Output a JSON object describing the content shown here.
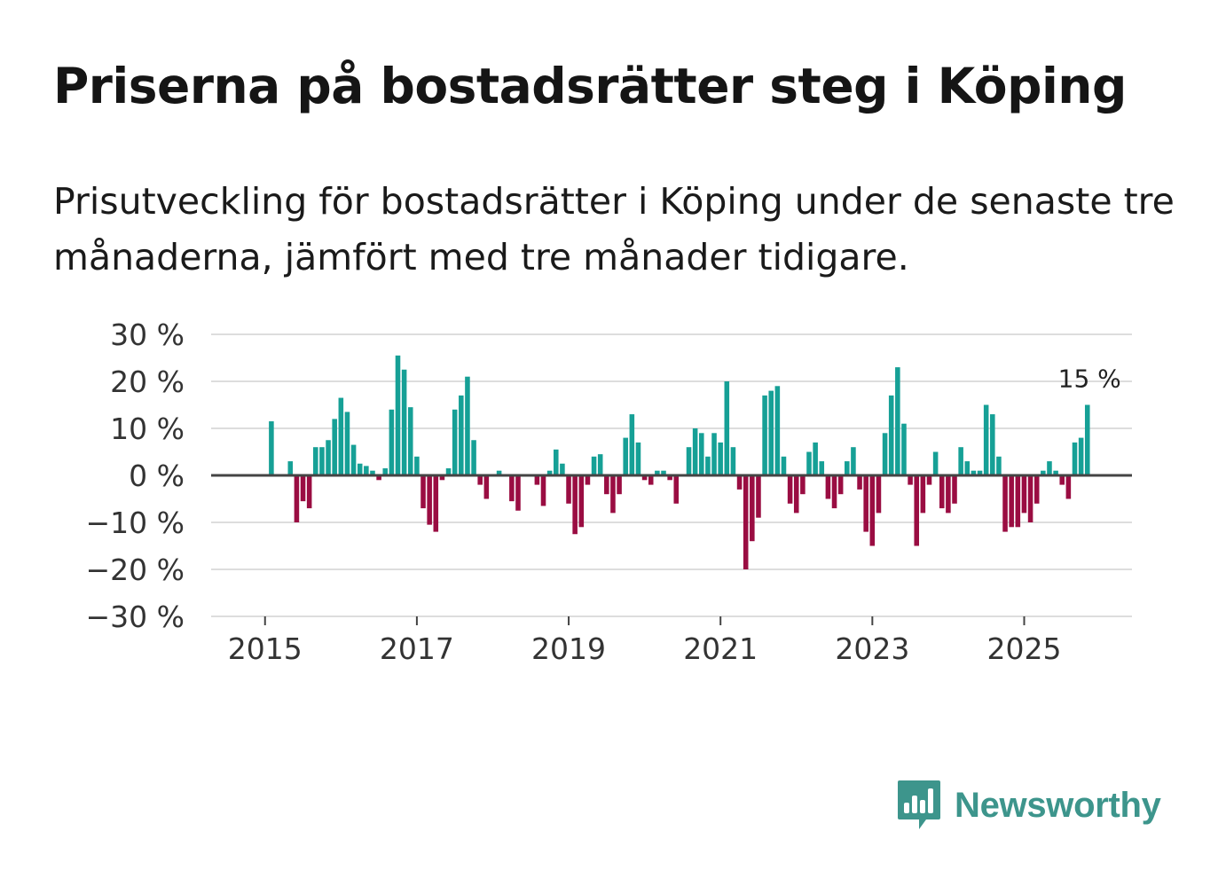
{
  "title": "Priserna på bostadsrätter steg i Köping",
  "subtitle": "Prisutveckling för bostadsrätter i Köping under de senaste tre månaderna, jämfört med tre månader tidigare.",
  "brand": {
    "name": "Newsworthy",
    "color": "#3d958c",
    "icon": "newsworthy-logo-icon"
  },
  "colors": {
    "positive": "#16a096",
    "negative": "#9a0d42",
    "grid": "#dddddd",
    "zero": "#444444"
  },
  "chart_data": {
    "type": "bar",
    "title": "Priserna på bostadsrätter steg i Köping",
    "xlabel": "",
    "ylabel": "",
    "ylim": [
      -30,
      30
    ],
    "y_ticks": [
      30,
      20,
      10,
      0,
      -10,
      -20,
      -30
    ],
    "y_tick_labels": [
      "30 %",
      "20 %",
      "10 %",
      "0 %",
      "−10 %",
      "−20 %",
      "−30 %"
    ],
    "x_ticks": [
      2015,
      2017,
      2019,
      2021,
      2023,
      2025
    ],
    "x_tick_labels": [
      "2015",
      "2017",
      "2019",
      "2021",
      "2023",
      "2025"
    ],
    "x_range": [
      2014.29,
      2026.42
    ],
    "start": 2015.0,
    "step": 0.08333,
    "end_label": "15 %",
    "values": [
      0,
      11.5,
      0,
      0,
      3,
      -10,
      -5.5,
      -7,
      6,
      6,
      7.5,
      12,
      16.5,
      13.5,
      6.5,
      2.5,
      2,
      1,
      -1,
      1.5,
      14,
      25.5,
      22.5,
      14.5,
      4,
      -7,
      -10.5,
      -12,
      -1,
      1.5,
      14,
      17,
      21,
      7.5,
      -2,
      -5,
      0,
      1,
      0,
      -5.5,
      -7.5,
      0,
      0,
      -2,
      -6.5,
      1,
      5.5,
      2.5,
      -6,
      -12.5,
      -11,
      -2,
      4,
      4.5,
      -4,
      -8,
      -4,
      8,
      13,
      7,
      -1,
      -2,
      1,
      1,
      -1,
      -6,
      0,
      6,
      10,
      9,
      4,
      9,
      7,
      20,
      6,
      -3,
      -20,
      -14,
      -9,
      17,
      18,
      19,
      4,
      -6,
      -8,
      -4,
      5,
      7,
      3,
      -5,
      -7,
      -4,
      3,
      6,
      -3,
      -12,
      -15,
      -8,
      9,
      17,
      23,
      11,
      -2,
      -15,
      -8,
      -2,
      5,
      -7,
      -8,
      -6,
      6,
      3,
      1,
      1,
      15,
      13,
      4,
      -12,
      -11,
      -11,
      -8,
      -10,
      -6,
      1,
      3,
      1,
      -2,
      -5,
      7,
      8,
      15
    ]
  }
}
